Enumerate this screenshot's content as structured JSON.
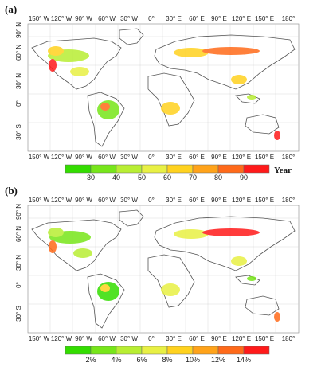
{
  "panels": [
    {
      "label": "(a)",
      "legend": {
        "ticks": [
          "30",
          "40",
          "50",
          "60",
          "70",
          "80",
          "90"
        ],
        "unit": "Year",
        "colors": [
          "#33dd00",
          "#77e61a",
          "#b8ee33",
          "#e8f044",
          "#ffd21f",
          "#ffa31a",
          "#ff6a1a",
          "#ff1a1a"
        ]
      }
    },
    {
      "label": "(b)",
      "legend": {
        "ticks": [
          "2%",
          "4%",
          "6%",
          "8%",
          "10%",
          "12%",
          "14%"
        ],
        "unit": "",
        "colors": [
          "#33dd00",
          "#77e61a",
          "#b8ee33",
          "#e8f044",
          "#ffd21f",
          "#ffa31a",
          "#ff6a1a",
          "#ff1a1a"
        ]
      }
    }
  ],
  "axes": {
    "lon_labels": [
      "150° W",
      "120° W",
      "90° W",
      "60° W",
      "30° W",
      "0°",
      "30° E",
      "60° E",
      "90° E",
      "120° E",
      "150° E",
      "180°"
    ],
    "lat_labels": [
      "90° N",
      "60° N",
      "30° N",
      "0°",
      "30° S"
    ]
  }
}
